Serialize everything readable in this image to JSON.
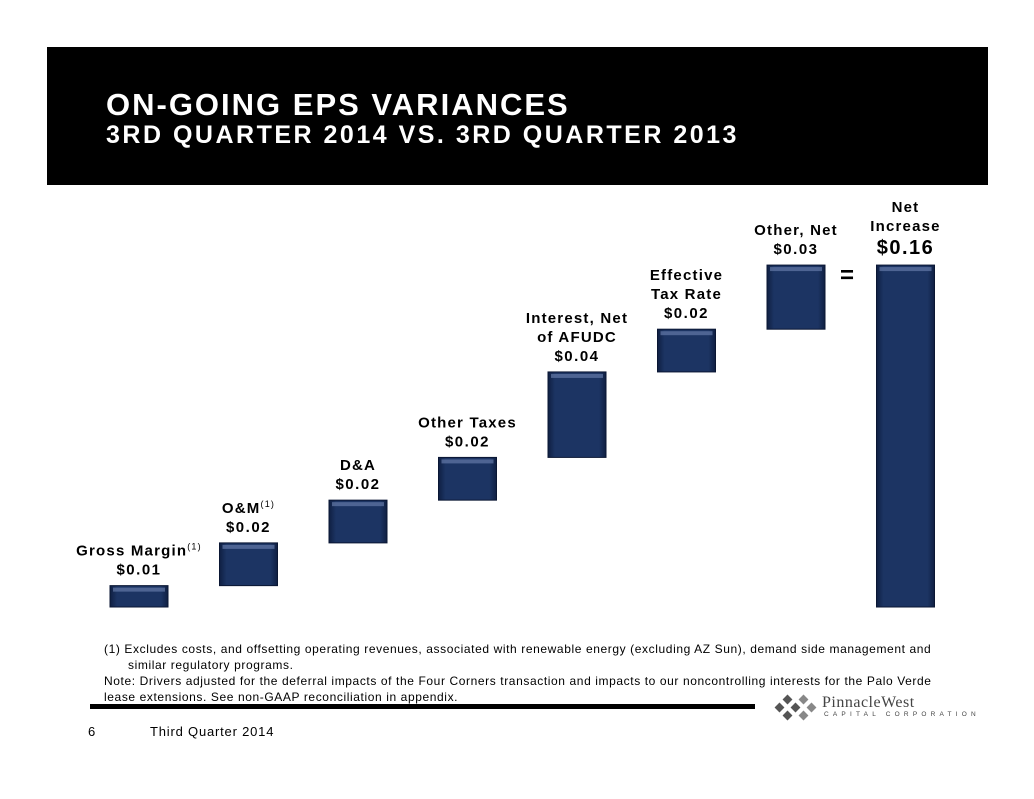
{
  "header": {
    "title": "ON-GOING EPS VARIANCES",
    "subtitle": "3RD QUARTER 2014 VS. 3RD QUARTER 2013"
  },
  "chart_data": {
    "type": "bar",
    "subtype": "waterfall",
    "title": "ON-GOING EPS VARIANCES",
    "subtitle": "3RD QUARTER 2014 VS. 3RD QUARTER 2013",
    "categories": [
      "Gross Margin",
      "O&M",
      "D&A",
      "Other Taxes",
      "Interest, Net of AFUDC",
      "Effective Tax Rate",
      "Other, Net",
      "Net Increase"
    ],
    "values": [
      0.01,
      0.02,
      0.02,
      0.02,
      0.04,
      0.02,
      0.03,
      0.16
    ],
    "value_labels": [
      "$0.01",
      "$0.02",
      "$0.02",
      "$0.02",
      "$0.04",
      "$0.02",
      "$0.03",
      "$0.16"
    ],
    "label_lines": [
      [
        "Gross Margin"
      ],
      [
        "O&M"
      ],
      [
        "D&A"
      ],
      [
        "Other Taxes"
      ],
      [
        "Interest, Net",
        "of AFUDC"
      ],
      [
        "Effective",
        "Tax Rate"
      ],
      [
        "Other, Net"
      ],
      [
        "Net",
        "Increase"
      ]
    ],
    "footnote_marks": [
      "(1)",
      "(1)",
      "",
      "",
      "",
      "",
      "",
      ""
    ],
    "total_index": 7,
    "equals_sign": "=",
    "bar_color": "#1c3463",
    "xlabel": "",
    "ylabel": "",
    "ylim": [
      0,
      0.16
    ]
  },
  "footnotes": {
    "note1": "(1)  Excludes costs, and offsetting operating revenues, associated with renewable energy (excluding AZ Sun), demand side management and similar regulatory programs.",
    "note2": "Note:  Drivers adjusted for the deferral impacts of the Four Corners transaction and impacts to our noncontrolling interests for the Palo Verde lease extensions.  See non-GAAP reconciliation in appendix."
  },
  "footer": {
    "page_number": "6",
    "text": "Third Quarter 2014"
  },
  "logo": {
    "name": "PinnacleWest",
    "tagline": "CAPITAL CORPORATION"
  }
}
